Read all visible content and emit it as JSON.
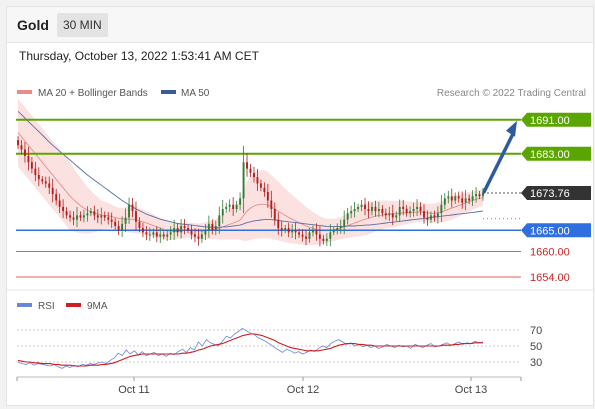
{
  "header": {
    "title": "Gold",
    "timeframe": "30 MIN"
  },
  "timestamp": "Thursday, October 13, 2022 1:53:41 AM CET",
  "legend": {
    "ma_bb": "MA 20 + Bollinger Bands",
    "ma50": "MA 50",
    "credit": "Research © 2022 Trading Central",
    "rsi": "RSI",
    "rsi_ma": "9MA"
  },
  "colors": {
    "bullish": "#2e7d32",
    "bearish": "#b71c1c",
    "resistance": "#5aa500",
    "support": "#2f6fe0",
    "minor_support": "#e06060",
    "last_price": "#333333",
    "ma50": "#5a6ea8",
    "ma20": "#e88b8b",
    "bands": "#fcdcdc",
    "arrow": "#2d5aa0",
    "rsi": "#6a86d6",
    "rsi_ma": "#cc1f1f"
  },
  "chart_data": [
    {
      "type": "candlestick",
      "title": "",
      "y_range": [
        1650,
        1698
      ],
      "x_ticks": [
        "Oct 11",
        "Oct 12",
        "Oct 13"
      ],
      "last_price": 1673.76,
      "levels": [
        {
          "value": 1691.0,
          "label": "1691.00",
          "kind": "resistance"
        },
        {
          "value": 1683.0,
          "label": "1683.00",
          "kind": "resistance"
        },
        {
          "value": 1665.0,
          "label": "1665.00",
          "kind": "support"
        },
        {
          "value": 1660.0,
          "label": "1660.00",
          "kind": "minor_support"
        },
        {
          "value": 1654.0,
          "label": "1654.00",
          "kind": "minor_support"
        }
      ],
      "price_label": "1673.76",
      "closes": [
        1685.0,
        1684.0,
        1682.5,
        1681.0,
        1679.5,
        1678.0,
        1677.0,
        1676.5,
        1676.0,
        1675.0,
        1673.5,
        1672.0,
        1670.5,
        1669.5,
        1668.5,
        1668.0,
        1667.5,
        1668.5,
        1668.0,
        1668.5,
        1669.0,
        1669.5,
        1668.5,
        1668.0,
        1668.5,
        1668.0,
        1667.5,
        1667.0,
        1666.0,
        1665.0,
        1666.5,
        1668.0,
        1671.0,
        1669.5,
        1667.0,
        1665.5,
        1664.5,
        1664.0,
        1664.0,
        1664.5,
        1663.5,
        1664.0,
        1663.5,
        1664.0,
        1664.5,
        1665.5,
        1664.5,
        1666.0,
        1665.5,
        1665.0,
        1664.0,
        1663.5,
        1663.0,
        1664.0,
        1665.0,
        1666.5,
        1665.0,
        1666.0,
        1668.5,
        1670.0,
        1670.5,
        1671.0,
        1670.0,
        1671.0,
        1672.5,
        1681.0,
        1679.5,
        1678.5,
        1677.5,
        1676.0,
        1675.0,
        1674.0,
        1672.0,
        1670.0,
        1667.5,
        1665.5,
        1665.0,
        1665.5,
        1664.5,
        1665.0,
        1664.5,
        1664.0,
        1663.5,
        1663.0,
        1664.5,
        1665.0,
        1664.0,
        1663.0,
        1662.5,
        1663.0,
        1664.5,
        1665.0,
        1665.5,
        1666.0,
        1667.5,
        1669.0,
        1669.5,
        1670.0,
        1670.5,
        1671.0,
        1670.0,
        1669.5,
        1670.5,
        1669.5,
        1670.0,
        1669.0,
        1668.5,
        1669.0,
        1668.0,
        1668.5,
        1670.5,
        1670.0,
        1669.0,
        1669.5,
        1670.0,
        1670.5,
        1669.5,
        1668.0,
        1667.5,
        1668.5,
        1668.0,
        1669.0,
        1671.0,
        1672.5,
        1673.0,
        1672.0,
        1673.0,
        1672.5,
        1671.5,
        1672.5,
        1672.0,
        1673.0,
        1673.5,
        1673.0,
        1673.76
      ],
      "ma20": [
        1688.0,
        1687.0,
        1686.0,
        1685.0,
        1684.0,
        1683.0,
        1682.0,
        1681.0,
        1680.0,
        1679.0,
        1678.0,
        1677.0,
        1676.0,
        1675.0,
        1674.0,
        1673.0,
        1672.2,
        1671.5,
        1670.8,
        1670.2,
        1669.7,
        1669.3,
        1669.0,
        1668.8,
        1668.6,
        1668.5,
        1668.4,
        1668.2,
        1668.0,
        1667.8,
        1667.7,
        1667.6,
        1667.6,
        1667.6,
        1667.4,
        1667.2,
        1667.0,
        1666.7,
        1666.4,
        1666.1,
        1665.8,
        1665.5,
        1665.2,
        1664.9,
        1664.8,
        1664.7,
        1664.7,
        1664.8,
        1664.9,
        1665.0,
        1665.0,
        1664.9,
        1664.8,
        1664.8,
        1664.9,
        1665.0,
        1665.1,
        1665.3,
        1665.5,
        1665.8,
        1666.1,
        1666.4,
        1666.7,
        1667.0,
        1667.4,
        1668.5,
        1669.5,
        1670.2,
        1670.7,
        1671.0,
        1671.1,
        1671.1,
        1670.9,
        1670.5,
        1670.0,
        1669.5,
        1669.0,
        1668.5,
        1668.0,
        1667.6,
        1667.2,
        1666.8,
        1666.4,
        1666.0,
        1665.7,
        1665.4,
        1665.2,
        1665.0,
        1664.9,
        1664.9,
        1665.0,
        1665.1,
        1665.3,
        1665.5,
        1665.8,
        1666.1,
        1666.4,
        1666.7,
        1667.0,
        1667.3,
        1667.6,
        1667.8,
        1668.1,
        1668.3,
        1668.5,
        1668.6,
        1668.7,
        1668.8,
        1668.8,
        1668.9,
        1669.0,
        1669.1,
        1669.1,
        1669.2,
        1669.2,
        1669.3,
        1669.3,
        1669.2,
        1669.1,
        1669.0,
        1669.0,
        1669.1,
        1669.3,
        1669.6,
        1669.9,
        1670.2,
        1670.5,
        1670.8,
        1671.1,
        1671.4,
        1671.7,
        1672.0,
        1672.3,
        1672.5,
        1672.7
      ],
      "ma50": [
        1693.0,
        1692.2,
        1691.4,
        1690.6,
        1689.8,
        1689.0,
        1688.2,
        1687.4,
        1686.6,
        1685.8,
        1685.0,
        1684.3,
        1683.6,
        1682.9,
        1682.2,
        1681.5,
        1680.8,
        1680.1,
        1679.4,
        1678.7,
        1678.0,
        1677.4,
        1676.8,
        1676.2,
        1675.6,
        1675.0,
        1674.4,
        1673.8,
        1673.2,
        1672.6,
        1672.0,
        1671.5,
        1671.0,
        1670.5,
        1670.0,
        1669.6,
        1669.2,
        1668.8,
        1668.5,
        1668.2,
        1667.9,
        1667.6,
        1667.4,
        1667.2,
        1667.0,
        1666.8,
        1666.6,
        1666.5,
        1666.4,
        1666.3,
        1666.2,
        1666.1,
        1666.0,
        1665.9,
        1665.8,
        1665.8,
        1665.7,
        1665.7,
        1665.7,
        1665.8,
        1665.8,
        1665.9,
        1666.0,
        1666.1,
        1666.2,
        1666.5,
        1666.8,
        1667.0,
        1667.2,
        1667.3,
        1667.4,
        1667.5,
        1667.5,
        1667.5,
        1667.4,
        1667.3,
        1667.2,
        1667.1,
        1667.0,
        1666.9,
        1666.8,
        1666.7,
        1666.6,
        1666.5,
        1666.4,
        1666.3,
        1666.2,
        1666.1,
        1666.0,
        1665.9,
        1665.9,
        1665.9,
        1665.9,
        1665.9,
        1665.9,
        1666.0,
        1666.0,
        1666.0,
        1666.1,
        1666.1,
        1666.2,
        1666.2,
        1666.3,
        1666.4,
        1666.5,
        1666.6,
        1666.7,
        1666.8,
        1666.9,
        1667.0,
        1667.1,
        1667.2,
        1667.3,
        1667.4,
        1667.5,
        1667.6,
        1667.7,
        1667.8,
        1667.9,
        1668.0,
        1668.1,
        1668.2,
        1668.3,
        1668.4,
        1668.5,
        1668.6,
        1668.7,
        1668.8,
        1668.9,
        1669.0,
        1669.1,
        1669.2,
        1669.3,
        1669.4,
        1669.5
      ],
      "band_width": [
        8.0,
        8.0,
        8.0,
        8.0,
        8.0,
        8.0,
        8.0,
        8.0,
        8.0,
        8.0,
        8.0,
        8.0,
        8.0,
        8.0,
        8.0,
        8.0,
        7.5,
        7.0,
        6.5,
        6.0,
        5.5,
        5.0,
        4.5,
        4.0,
        3.5,
        3.2,
        3.0,
        2.8,
        2.6,
        2.5,
        2.6,
        2.8,
        3.1,
        3.2,
        3.1,
        3.0,
        2.9,
        2.8,
        2.7,
        2.6,
        2.5,
        2.4,
        2.3,
        2.2,
        2.0,
        1.9,
        1.8,
        1.8,
        1.8,
        1.8,
        1.8,
        1.8,
        1.8,
        1.9,
        2.0,
        2.1,
        2.2,
        2.4,
        2.7,
        3.0,
        3.3,
        3.6,
        3.9,
        4.2,
        4.6,
        6.0,
        7.0,
        7.5,
        7.8,
        8.0,
        8.0,
        8.0,
        7.8,
        7.5,
        7.2,
        6.9,
        6.6,
        6.3,
        6.0,
        5.7,
        5.4,
        5.1,
        4.8,
        4.5,
        4.2,
        3.9,
        3.6,
        3.3,
        3.0,
        2.8,
        2.7,
        2.6,
        2.6,
        2.6,
        2.7,
        2.9,
        3.1,
        3.3,
        3.5,
        3.7,
        3.8,
        3.8,
        3.7,
        3.6,
        3.5,
        3.4,
        3.3,
        3.2,
        3.1,
        3.0,
        2.9,
        2.8,
        2.7,
        2.6,
        2.5,
        2.4,
        2.3,
        2.2,
        2.2,
        2.2,
        2.3,
        2.4,
        2.5,
        2.6,
        2.7,
        2.7,
        2.7,
        2.6,
        2.5,
        2.4,
        2.3,
        2.2,
        2.1,
        2.0,
        2.0
      ],
      "forecast_target": 1691.0
    },
    {
      "type": "line",
      "title": "",
      "y_range": [
        15,
        85
      ],
      "y_ticks": [
        70,
        50,
        30
      ],
      "series": [
        {
          "name": "RSI",
          "values": [
            30,
            28,
            27,
            29,
            26,
            28,
            27,
            26,
            25,
            27,
            24,
            22,
            25,
            23,
            26,
            24,
            27,
            26,
            28,
            27,
            29,
            30,
            28,
            32,
            35,
            41,
            38,
            45,
            40,
            44,
            39,
            43,
            38,
            40,
            42,
            38,
            40,
            37,
            41,
            39,
            43,
            46,
            42,
            48,
            45,
            55,
            50,
            58,
            54,
            52,
            50,
            56,
            62,
            60,
            65,
            68,
            72,
            69,
            66,
            64,
            60,
            58,
            55,
            52,
            48,
            45,
            42,
            46,
            44,
            41,
            43,
            40,
            42,
            45,
            43,
            47,
            50,
            48,
            53,
            56,
            58,
            55,
            52,
            54,
            50,
            52,
            49,
            51,
            48,
            50,
            47,
            49,
            52,
            50,
            48,
            51,
            49,
            50,
            47,
            52,
            50,
            48,
            51,
            53,
            49,
            50,
            52,
            54,
            51,
            53,
            55,
            52,
            54,
            53,
            56,
            54,
            55
          ]
        },
        {
          "name": "9MA",
          "values": [
            32,
            31,
            30,
            30,
            29,
            29,
            28,
            28,
            28,
            27,
            27,
            26,
            26,
            26,
            25,
            25,
            25,
            25,
            26,
            26,
            26,
            27,
            27,
            28,
            29,
            31,
            33,
            35,
            37,
            38,
            39,
            40,
            40,
            40,
            40,
            40,
            40,
            40,
            40,
            40,
            40,
            41,
            41,
            42,
            43,
            45,
            46,
            48,
            50,
            51,
            52,
            53,
            55,
            57,
            59,
            61,
            63,
            64,
            65,
            65,
            64,
            63,
            61,
            59,
            57,
            54,
            52,
            50,
            48,
            47,
            46,
            45,
            44,
            44,
            44,
            44,
            45,
            46,
            47,
            49,
            51,
            52,
            53,
            53,
            53,
            52,
            52,
            51,
            51,
            50,
            50,
            50,
            50,
            50,
            50,
            50,
            50,
            50,
            50,
            50,
            50,
            50,
            50,
            50,
            50,
            50,
            51,
            51,
            51,
            52,
            52,
            53,
            53,
            53,
            54,
            54,
            54
          ]
        }
      ]
    }
  ]
}
